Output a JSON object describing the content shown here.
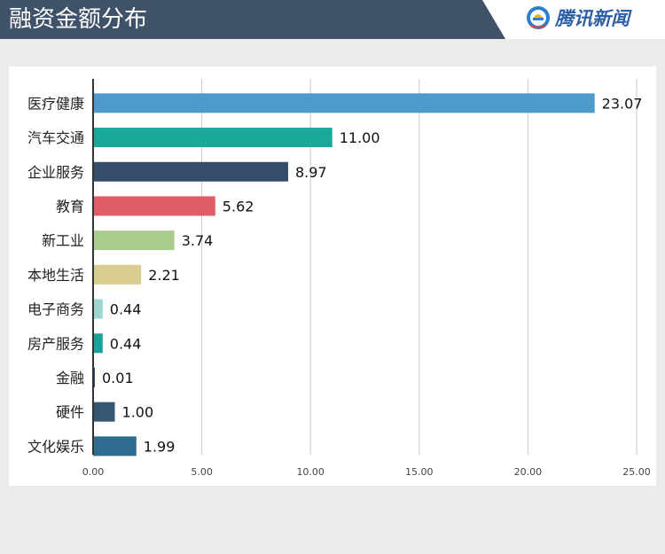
{
  "header": {
    "title": "融资金额分布",
    "brand": "腾讯新闻",
    "bg_color": "#3f5269",
    "brand_color": "#2b5fa8"
  },
  "chart_data": {
    "type": "bar",
    "orientation": "horizontal",
    "title": "融资金额分布",
    "xlabel": "",
    "ylabel": "",
    "xlim": [
      0,
      25
    ],
    "x_ticks": [
      "0.00",
      "5.00",
      "10.00",
      "15.00",
      "20.00",
      "25.00"
    ],
    "x_tick_values": [
      0,
      5,
      10,
      15,
      20,
      25
    ],
    "grid": true,
    "legend": "none",
    "categories": [
      "医疗健康",
      "汽车交通",
      "企业服务",
      "教育",
      "新工业",
      "本地生活",
      "电子商务",
      "房产服务",
      "金融",
      "硬件",
      "文化娱乐"
    ],
    "values": [
      23.07,
      11.0,
      8.97,
      5.62,
      3.74,
      2.21,
      0.44,
      0.44,
      0.01,
      1.0,
      1.99
    ],
    "value_labels": [
      "23.07",
      "11.00",
      "8.97",
      "5.62",
      "3.74",
      "2.21",
      "0.44",
      "0.44",
      "0.01",
      "1.00",
      "1.99"
    ],
    "colors": [
      "#4e9acb",
      "#1aa89a",
      "#334d6b",
      "#e05c66",
      "#a9cc8e",
      "#d9cd8e",
      "#9dd6cf",
      "#17a39a",
      "#2d4f6c",
      "#365672",
      "#2e6c90"
    ]
  }
}
